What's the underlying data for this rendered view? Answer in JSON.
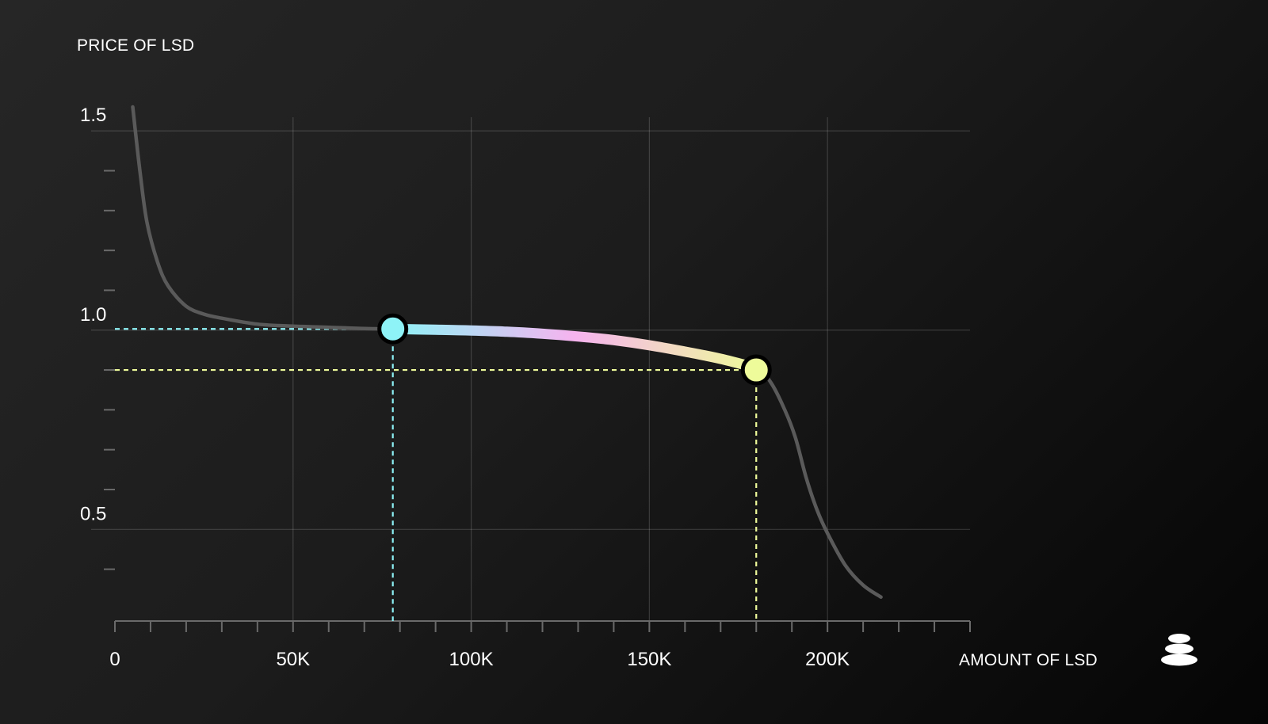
{
  "chart_data": {
    "type": "line",
    "title": "",
    "ylabel": "PRICE OF LSD",
    "xlabel": "AMOUNT OF LSD",
    "xlim": [
      0,
      240000
    ],
    "ylim": [
      0.27,
      1.57
    ],
    "x_ticks": [
      {
        "value": 0,
        "label": "0"
      },
      {
        "value": 50000,
        "label": "50K"
      },
      {
        "value": 100000,
        "label": "100K"
      },
      {
        "value": 150000,
        "label": "150K"
      },
      {
        "value": 200000,
        "label": "200K"
      }
    ],
    "y_ticks": [
      {
        "value": 0.5,
        "label": "0.5"
      },
      {
        "value": 1.0,
        "label": "1.0"
      },
      {
        "value": 1.5,
        "label": "1.5"
      }
    ],
    "minor_x_step": 10000,
    "minor_y_step": 0.1,
    "grid": true,
    "series": [
      {
        "values": [
          [
            5000,
            1.56
          ],
          [
            7000,
            1.4
          ],
          [
            9000,
            1.27
          ],
          [
            12000,
            1.17
          ],
          [
            15000,
            1.11
          ],
          [
            20000,
            1.06
          ],
          [
            25000,
            1.04
          ],
          [
            30000,
            1.03
          ],
          [
            40000,
            1.015
          ],
          [
            50000,
            1.01
          ],
          [
            60000,
            1.007
          ],
          [
            70000,
            1.004
          ],
          [
            78000,
            1.003
          ],
          [
            90000,
            1.001
          ],
          [
            100000,
            0.999
          ],
          [
            110000,
            0.996
          ],
          [
            120000,
            0.991
          ],
          [
            130000,
            0.984
          ],
          [
            140000,
            0.975
          ],
          [
            150000,
            0.962
          ],
          [
            160000,
            0.946
          ],
          [
            170000,
            0.928
          ],
          [
            180000,
            0.905
          ],
          [
            184000,
            0.87
          ],
          [
            188000,
            0.8
          ],
          [
            191000,
            0.73
          ],
          [
            194000,
            0.63
          ],
          [
            197000,
            0.55
          ],
          [
            200000,
            0.49
          ],
          [
            205000,
            0.41
          ],
          [
            210000,
            0.36
          ],
          [
            215000,
            0.33
          ]
        ],
        "color": "#5a5a5a"
      }
    ],
    "highlight_segment": {
      "from_x": 78000,
      "to_x": 180000,
      "gradient_colors": [
        "#8ef3f7",
        "#f6b3ef",
        "#eefb9a"
      ]
    },
    "markers": [
      {
        "x": 78000,
        "y": 1.003,
        "color": "#8ef3f7"
      },
      {
        "x": 180000,
        "y": 0.9,
        "color": "#eefb9a"
      }
    ]
  },
  "logo": {
    "icon": "stacked-stones-icon",
    "color": "#ffffff"
  }
}
